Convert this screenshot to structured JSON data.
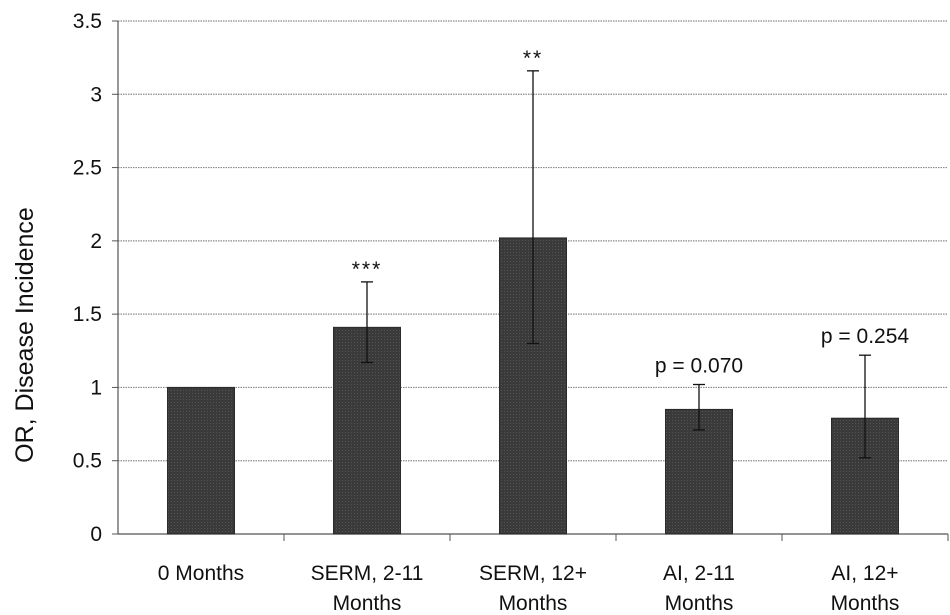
{
  "chart_data": {
    "type": "bar",
    "title": "",
    "xlabel": "",
    "ylabel": "OR, Disease Incidence",
    "ylim": [
      0,
      3.5
    ],
    "yticks": [
      "0",
      "0.5",
      "1",
      "1.5",
      "2",
      "2.5",
      "3",
      "3.5"
    ],
    "grid": true,
    "categories": [
      [
        "0 Months"
      ],
      [
        "SERM, 2-11",
        "Months"
      ],
      [
        "SERM, 12+",
        "Months"
      ],
      [
        "AI, 2-11",
        "Months"
      ],
      [
        "AI, 12+",
        "Months"
      ]
    ],
    "values": [
      1.0,
      1.41,
      2.02,
      0.85,
      0.79
    ],
    "error_low": [
      1.0,
      1.17,
      1.3,
      0.71,
      0.52
    ],
    "error_high": [
      1.0,
      1.72,
      3.16,
      1.02,
      1.22
    ],
    "annotations": [
      "",
      "***",
      "**",
      "p = 0.070",
      "p = 0.254"
    ],
    "colors": {
      "bar": "#3a3a3a",
      "grid": "#8a8a8a",
      "axis": "#555555"
    }
  }
}
